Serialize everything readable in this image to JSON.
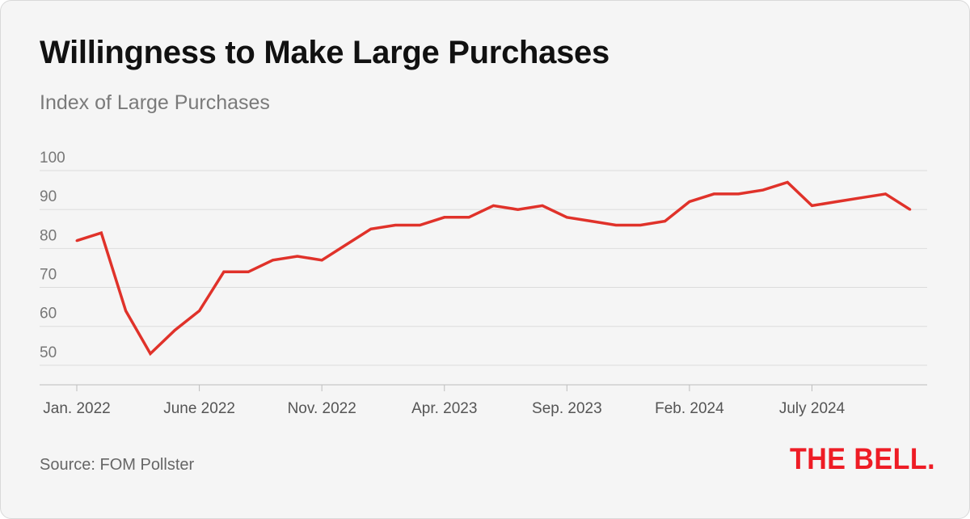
{
  "title": "Willingness to Make Large Purchases",
  "subtitle": "Index of Large Purchases",
  "source": "Source: FOM Pollster",
  "logo_text": "THE BELL.",
  "colors": {
    "line": "#e0322a",
    "grid": "#dcdcdc",
    "axis": "#bdbdbd",
    "logo": "#ee1c25"
  },
  "chart_data": {
    "type": "line",
    "title": "Willingness to Make Large Purchases",
    "subtitle": "Index of Large Purchases",
    "xlabel": "",
    "ylabel": "",
    "xlim": [
      0,
      34.7
    ],
    "ylim": [
      45,
      100
    ],
    "yticks": [
      50,
      60,
      70,
      80,
      90,
      100
    ],
    "xticks": [
      {
        "x": 0,
        "label": "Jan. 2022"
      },
      {
        "x": 5,
        "label": "June 2022"
      },
      {
        "x": 10,
        "label": "Nov. 2022"
      },
      {
        "x": 15,
        "label": "Apr. 2023"
      },
      {
        "x": 20,
        "label": "Sep. 2023"
      },
      {
        "x": 25,
        "label": "Feb. 2024"
      },
      {
        "x": 30,
        "label": "July 2024"
      }
    ],
    "grid": true,
    "legend": "none",
    "series": [
      {
        "values": [
          [
            0,
            82
          ],
          [
            1,
            84
          ],
          [
            2,
            64
          ],
          [
            3,
            53
          ],
          [
            4,
            59
          ],
          [
            5,
            64
          ],
          [
            6,
            74
          ],
          [
            7,
            74
          ],
          [
            8,
            77
          ],
          [
            9,
            78
          ],
          [
            10,
            77
          ],
          [
            11,
            81
          ],
          [
            12,
            85
          ],
          [
            13,
            86
          ],
          [
            14,
            86
          ],
          [
            15,
            88
          ],
          [
            16,
            88
          ],
          [
            17,
            91
          ],
          [
            18,
            90
          ],
          [
            19,
            91
          ],
          [
            20,
            88
          ],
          [
            21,
            87
          ],
          [
            22,
            86
          ],
          [
            23,
            86
          ],
          [
            24,
            87
          ],
          [
            25,
            92
          ],
          [
            26,
            94
          ],
          [
            27,
            94
          ],
          [
            28,
            95
          ],
          [
            29,
            97
          ],
          [
            30,
            91
          ],
          [
            31,
            92
          ],
          [
            32,
            93
          ],
          [
            33,
            94
          ],
          [
            34,
            90
          ]
        ]
      }
    ]
  }
}
